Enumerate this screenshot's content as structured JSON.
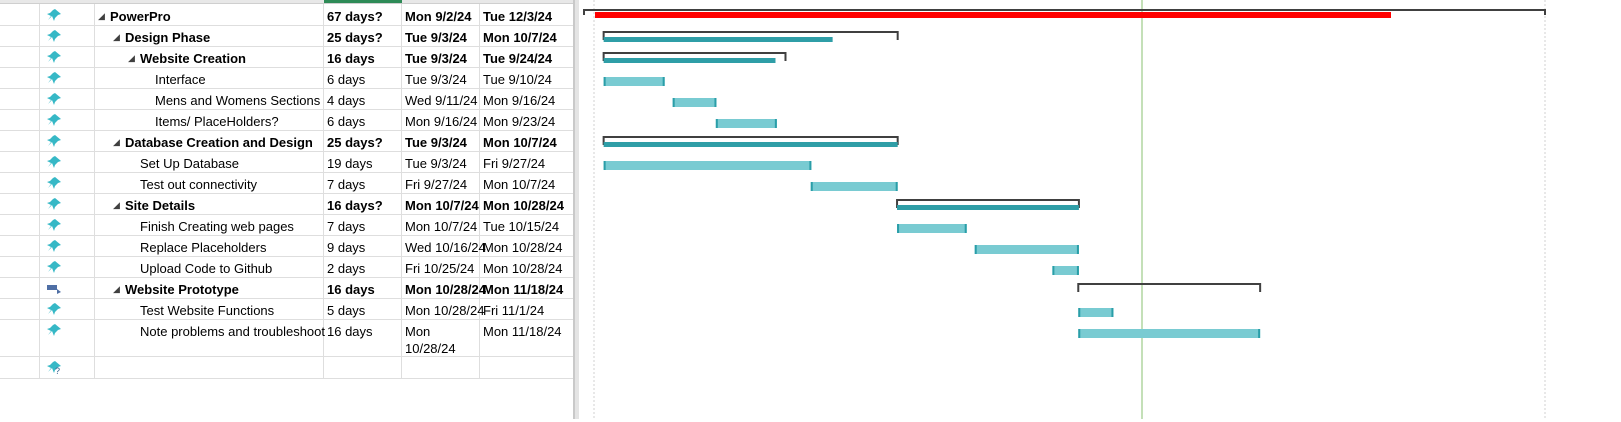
{
  "colors": {
    "critical": "#ff0000",
    "task_fill": "#79cbd2",
    "task_edge": "#2a9ea8",
    "summary_fill": "#2f9ea7",
    "bracket": "#404040",
    "today_line": "#9ccc88"
  },
  "rows": [
    {
      "mode": "pin",
      "indent": 0,
      "collapse": true,
      "bold": true,
      "name": "PowerPro",
      "duration": "67 days?",
      "start": "Mon 9/2/24",
      "finish": "Tue 12/3/24"
    },
    {
      "mode": "pin",
      "indent": 1,
      "collapse": true,
      "bold": true,
      "name": "Design Phase",
      "duration": "25 days?",
      "start": "Tue 9/3/24",
      "finish": "Mon 10/7/24"
    },
    {
      "mode": "pin",
      "indent": 2,
      "collapse": true,
      "bold": true,
      "name": "Website Creation",
      "duration": "16 days",
      "start": "Tue 9/3/24",
      "finish": "Tue 9/24/24"
    },
    {
      "mode": "pin",
      "indent": 3,
      "collapse": false,
      "bold": false,
      "name": "Interface",
      "duration": "6 days",
      "start": "Tue 9/3/24",
      "finish": "Tue 9/10/24"
    },
    {
      "mode": "pin",
      "indent": 3,
      "collapse": false,
      "bold": false,
      "name": "Mens and Womens Sections",
      "duration": "4 days",
      "start": "Wed 9/11/24",
      "finish": "Mon 9/16/24"
    },
    {
      "mode": "pin",
      "indent": 3,
      "collapse": false,
      "bold": false,
      "name": "Items/ PlaceHolders?",
      "duration": "6 days",
      "start": "Mon 9/16/24",
      "finish": "Mon 9/23/24"
    },
    {
      "mode": "pin",
      "indent": 1,
      "collapse": true,
      "bold": true,
      "name": "Database Creation and Design",
      "duration": "25 days?",
      "start": "Tue 9/3/24",
      "finish": "Mon 10/7/24"
    },
    {
      "mode": "pin",
      "indent": 2,
      "collapse": false,
      "bold": false,
      "name": "Set Up Database",
      "duration": "19 days",
      "start": "Tue 9/3/24",
      "finish": "Fri 9/27/24"
    },
    {
      "mode": "pin",
      "indent": 2,
      "collapse": false,
      "bold": false,
      "name": "Test out connectivity",
      "duration": "7 days",
      "start": "Fri 9/27/24",
      "finish": "Mon 10/7/24"
    },
    {
      "mode": "pin",
      "indent": 1,
      "collapse": true,
      "bold": true,
      "name": "Site Details",
      "duration": "16 days?",
      "start": "Mon 10/7/24",
      "finish": "Mon 10/28/24"
    },
    {
      "mode": "pin",
      "indent": 2,
      "collapse": false,
      "bold": false,
      "name": "Finish Creating web pages",
      "duration": "7 days",
      "start": "Mon 10/7/24",
      "finish": "Tue 10/15/24"
    },
    {
      "mode": "pin",
      "indent": 2,
      "collapse": false,
      "bold": false,
      "name": "Replace Placeholders",
      "duration": "9 days",
      "start": "Wed 10/16/24",
      "finish": "Mon 10/28/24"
    },
    {
      "mode": "pin",
      "indent": 2,
      "collapse": false,
      "bold": false,
      "name": "Upload Code to Github",
      "duration": "2 days",
      "start": "Fri 10/25/24",
      "finish": "Mon 10/28/24"
    },
    {
      "mode": "auto",
      "indent": 1,
      "collapse": true,
      "bold": true,
      "name": "Website Prototype",
      "duration": "16 days",
      "start": "Mon 10/28/24",
      "finish": "Mon 11/18/24"
    },
    {
      "mode": "pin",
      "indent": 2,
      "collapse": false,
      "bold": false,
      "name": "Test Website Functions",
      "duration": "5 days",
      "start": "Mon 10/28/24",
      "finish": "Fri 11/1/24"
    },
    {
      "mode": "pin",
      "indent": 2,
      "collapse": false,
      "bold": false,
      "name": "Note problems and troubleshoot",
      "duration": "16 days",
      "start": "Mon 10/28/24",
      "finish": "Mon 11/18/24"
    },
    {
      "mode": "new",
      "indent": 0,
      "collapse": false,
      "bold": false,
      "name": "",
      "duration": "",
      "start": "",
      "finish": ""
    }
  ]
}
